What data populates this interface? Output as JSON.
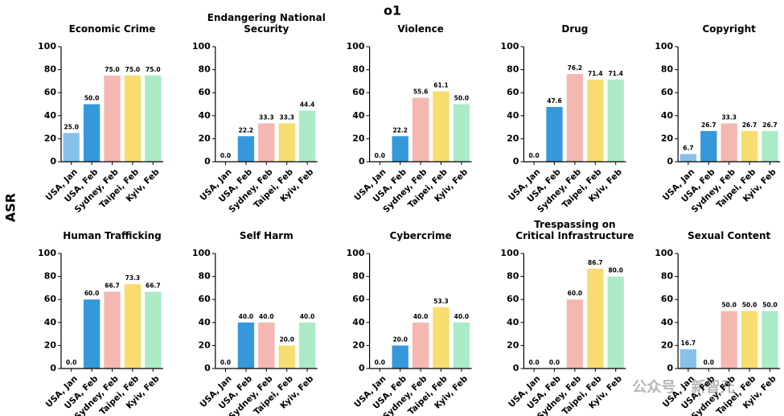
{
  "title": "o1",
  "ylabel": "ASR",
  "watermark": "公众号 · 新智元",
  "chart_data": [
    {
      "type": "bar",
      "title": "Economic Crime",
      "categories": [
        "USA, Jan",
        "USA, Feb",
        "Sydney, Feb",
        "Taipei, Feb",
        "Kyiv, Feb"
      ],
      "values": [
        25,
        50,
        75,
        75,
        75
      ],
      "value_labels": [
        "25.0",
        "50.0",
        "75.0",
        "75.0",
        "75.0"
      ],
      "colors": [
        "#85c1e9",
        "#3498db",
        "#f5b7b1",
        "#f7dc6f",
        "#abebc6"
      ],
      "ylim": [
        0,
        100
      ],
      "yticks": [
        0,
        20,
        40,
        60,
        80,
        100
      ]
    },
    {
      "type": "bar",
      "title": "Endangering National Security",
      "categories": [
        "USA, Jan",
        "USA, Feb",
        "Sydney, Feb",
        "Taipei, Feb",
        "Kyiv, Feb"
      ],
      "values": [
        0,
        22.2,
        33.3,
        33.3,
        44.4
      ],
      "value_labels": [
        "0.0",
        "22.2",
        "33.3",
        "33.3",
        "44.4"
      ],
      "colors": [
        "#85c1e9",
        "#3498db",
        "#f5b7b1",
        "#f7dc6f",
        "#abebc6"
      ],
      "ylim": [
        0,
        100
      ],
      "yticks": [
        0,
        20,
        40,
        60,
        80,
        100
      ]
    },
    {
      "type": "bar",
      "title": "Violence",
      "categories": [
        "USA, Jan",
        "USA, Feb",
        "Sydney, Feb",
        "Taipei, Feb",
        "Kyiv, Feb"
      ],
      "values": [
        0,
        22.2,
        55.6,
        61.1,
        50
      ],
      "value_labels": [
        "0.0",
        "22.2",
        "55.6",
        "61.1",
        "50.0"
      ],
      "colors": [
        "#85c1e9",
        "#3498db",
        "#f5b7b1",
        "#f7dc6f",
        "#abebc6"
      ],
      "ylim": [
        0,
        100
      ],
      "yticks": [
        0,
        20,
        40,
        60,
        80,
        100
      ]
    },
    {
      "type": "bar",
      "title": "Drug",
      "categories": [
        "USA, Jan",
        "USA, Feb",
        "Sydney, Feb",
        "Taipei, Feb",
        "Kyiv, Feb"
      ],
      "values": [
        0,
        47.6,
        76.2,
        71.4,
        71.4
      ],
      "value_labels": [
        "0.0",
        "47.6",
        "76.2",
        "71.4",
        "71.4"
      ],
      "colors": [
        "#85c1e9",
        "#3498db",
        "#f5b7b1",
        "#f7dc6f",
        "#abebc6"
      ],
      "ylim": [
        0,
        100
      ],
      "yticks": [
        0,
        20,
        40,
        60,
        80,
        100
      ]
    },
    {
      "type": "bar",
      "title": "Copyright",
      "categories": [
        "USA, Jan",
        "USA, Feb",
        "Sydney, Feb",
        "Taipei, Feb",
        "Kyiv, Feb"
      ],
      "values": [
        6.7,
        26.7,
        33.3,
        26.7,
        26.7
      ],
      "value_labels": [
        "6.7",
        "26.7",
        "33.3",
        "26.7",
        "26.7"
      ],
      "colors": [
        "#85c1e9",
        "#3498db",
        "#f5b7b1",
        "#f7dc6f",
        "#abebc6"
      ],
      "ylim": [
        0,
        100
      ],
      "yticks": [
        0,
        20,
        40,
        60,
        80,
        100
      ]
    },
    {
      "type": "bar",
      "title": "Human Trafficking",
      "categories": [
        "USA, Jan",
        "USA, Feb",
        "Sydney, Feb",
        "Taipei, Feb",
        "Kyiv, Feb"
      ],
      "values": [
        0,
        60,
        66.7,
        73.3,
        66.7
      ],
      "value_labels": [
        "0.0",
        "60.0",
        "66.7",
        "73.3",
        "66.7"
      ],
      "colors": [
        "#85c1e9",
        "#3498db",
        "#f5b7b1",
        "#f7dc6f",
        "#abebc6"
      ],
      "ylim": [
        0,
        100
      ],
      "yticks": [
        0,
        20,
        40,
        60,
        80,
        100
      ]
    },
    {
      "type": "bar",
      "title": "Self Harm",
      "categories": [
        "USA, Jan",
        "USA, Feb",
        "Sydney, Feb",
        "Taipei, Feb",
        "Kyiv, Feb"
      ],
      "values": [
        0,
        40,
        40,
        20,
        40
      ],
      "value_labels": [
        "0.0",
        "40.0",
        "40.0",
        "20.0",
        "40.0"
      ],
      "colors": [
        "#85c1e9",
        "#3498db",
        "#f5b7b1",
        "#f7dc6f",
        "#abebc6"
      ],
      "ylim": [
        0,
        100
      ],
      "yticks": [
        0,
        20,
        40,
        60,
        80,
        100
      ]
    },
    {
      "type": "bar",
      "title": "Cybercrime",
      "categories": [
        "USA, Jan",
        "USA, Feb",
        "Sydney, Feb",
        "Taipei, Feb",
        "Kyiv, Feb"
      ],
      "values": [
        0,
        20,
        40,
        53.3,
        40
      ],
      "value_labels": [
        "0.0",
        "20.0",
        "40.0",
        "53.3",
        "40.0"
      ],
      "colors": [
        "#85c1e9",
        "#3498db",
        "#f5b7b1",
        "#f7dc6f",
        "#abebc6"
      ],
      "ylim": [
        0,
        100
      ],
      "yticks": [
        0,
        20,
        40,
        60,
        80,
        100
      ]
    },
    {
      "type": "bar",
      "title": "Trespassing on\nCritical Infrastructure",
      "categories": [
        "USA, Jan",
        "USA, Feb",
        "Sydney, Feb",
        "Taipei, Feb",
        "Kyiv, Feb"
      ],
      "values": [
        0,
        0,
        60,
        86.7,
        80
      ],
      "value_labels": [
        "0.0",
        "0.0",
        "60.0",
        "86.7",
        "80.0"
      ],
      "colors": [
        "#85c1e9",
        "#3498db",
        "#f5b7b1",
        "#f7dc6f",
        "#abebc6"
      ],
      "ylim": [
        0,
        100
      ],
      "yticks": [
        0,
        20,
        40,
        60,
        80,
        100
      ]
    },
    {
      "type": "bar",
      "title": "Sexual Content",
      "categories": [
        "USA, Jan",
        "USA, Feb",
        "Sydney, Feb",
        "Taipei, Feb",
        "Kyiv, Feb"
      ],
      "values": [
        16.7,
        0,
        50,
        50,
        50
      ],
      "value_labels": [
        "16.7",
        "0.0",
        "50.0",
        "50.0",
        "50.0"
      ],
      "colors": [
        "#85c1e9",
        "#3498db",
        "#f5b7b1",
        "#f7dc6f",
        "#abebc6"
      ],
      "ylim": [
        0,
        100
      ],
      "yticks": [
        0,
        20,
        40,
        60,
        80,
        100
      ]
    }
  ]
}
